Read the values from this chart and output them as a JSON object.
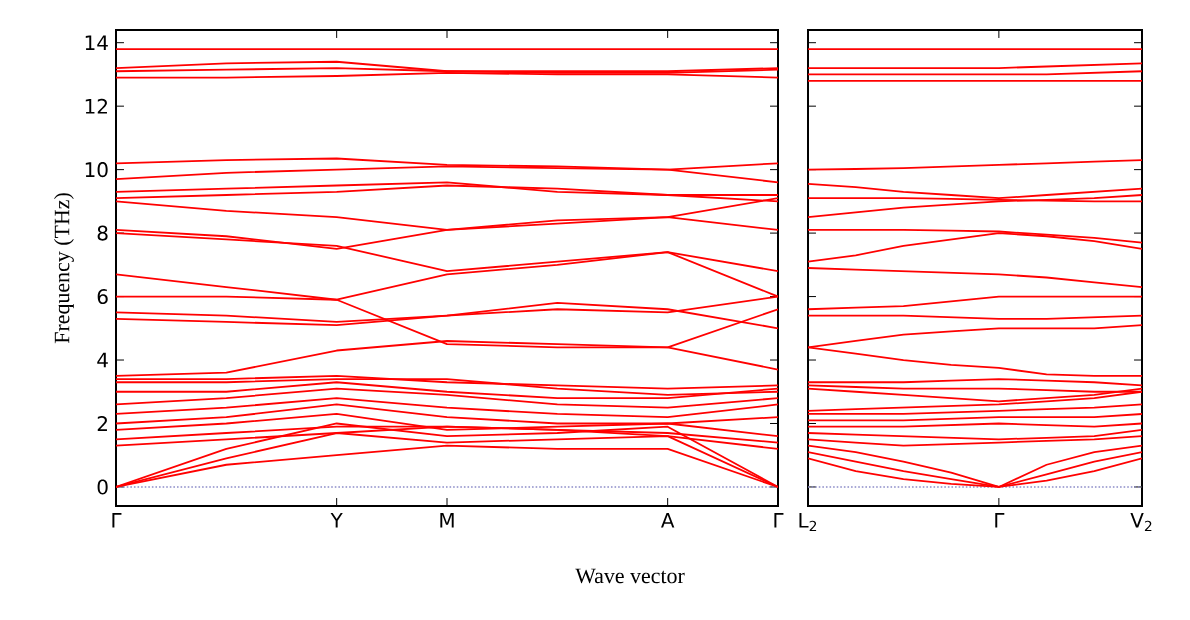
{
  "chart_data": [
    {
      "type": "line",
      "xlabel": "Wave vector",
      "ylabel": "Frequency (THz)",
      "categories": [
        "Γ",
        null,
        "Y",
        "M",
        null,
        "A",
        "Γ"
      ],
      "ylim": [
        -0.6,
        14.4
      ],
      "yticks": [
        0,
        2,
        4,
        6,
        8,
        10,
        12,
        14
      ],
      "ref_lines": [
        {
          "axis": "y",
          "value": 0,
          "color": "#8c8cc8",
          "line_style": "dotted"
        }
      ],
      "line_style": "solid",
      "series": [
        {
          "color": "#ff0000",
          "values": [
            13.8,
            13.8,
            13.8,
            13.8,
            13.8,
            13.8,
            13.8
          ]
        },
        {
          "color": "#ff0000",
          "values": [
            13.2,
            13.35,
            13.4,
            13.1,
            13.1,
            13.1,
            13.2
          ]
        },
        {
          "color": "#ff0000",
          "values": [
            13.1,
            13.15,
            13.2,
            13.1,
            13.05,
            13.05,
            13.15
          ]
        },
        {
          "color": "#ff0000",
          "values": [
            12.9,
            12.9,
            12.95,
            13.05,
            13.0,
            13.0,
            12.9
          ]
        },
        {
          "color": "#ff0000",
          "values": [
            10.2,
            10.3,
            10.35,
            10.15,
            10.1,
            10.0,
            10.2
          ]
        },
        {
          "color": "#ff0000",
          "values": [
            9.7,
            9.9,
            10.0,
            10.1,
            10.05,
            10.0,
            9.6
          ]
        },
        {
          "color": "#ff0000",
          "values": [
            9.3,
            9.4,
            9.5,
            9.6,
            9.3,
            9.2,
            9.2
          ]
        },
        {
          "color": "#ff0000",
          "values": [
            9.1,
            9.2,
            9.3,
            9.5,
            9.4,
            9.2,
            9.0
          ]
        },
        {
          "color": "#ff0000",
          "values": [
            9.0,
            8.7,
            8.5,
            8.1,
            8.3,
            8.5,
            9.1
          ]
        },
        {
          "color": "#ff0000",
          "values": [
            8.1,
            7.9,
            7.5,
            8.1,
            8.4,
            8.5,
            8.1
          ]
        },
        {
          "color": "#ff0000",
          "values": [
            8.0,
            7.8,
            7.6,
            6.8,
            7.1,
            7.4,
            6.8
          ]
        },
        {
          "color": "#ff0000",
          "values": [
            6.7,
            6.3,
            5.9,
            6.7,
            7.0,
            7.4,
            6.0
          ]
        },
        {
          "color": "#ff0000",
          "values": [
            6.0,
            6.0,
            5.9,
            4.5,
            4.4,
            4.4,
            5.6
          ]
        },
        {
          "color": "#ff0000",
          "values": [
            5.5,
            5.4,
            5.2,
            5.4,
            5.6,
            5.5,
            6.0
          ]
        },
        {
          "color": "#ff0000",
          "values": [
            5.3,
            5.2,
            5.1,
            5.4,
            5.8,
            5.6,
            5.0
          ]
        },
        {
          "color": "#ff0000",
          "values": [
            3.5,
            3.6,
            4.3,
            4.6,
            4.5,
            4.4,
            3.7
          ]
        },
        {
          "color": "#ff0000",
          "values": [
            3.4,
            3.4,
            3.5,
            3.3,
            3.2,
            3.1,
            3.2
          ]
        },
        {
          "color": "#ff0000",
          "values": [
            3.3,
            3.3,
            3.4,
            3.4,
            3.1,
            2.9,
            3.0
          ]
        },
        {
          "color": "#ff0000",
          "values": [
            3.0,
            3.0,
            3.3,
            3.0,
            2.8,
            2.8,
            3.1
          ]
        },
        {
          "color": "#ff0000",
          "values": [
            2.6,
            2.8,
            3.1,
            2.9,
            2.6,
            2.5,
            2.8
          ]
        },
        {
          "color": "#ff0000",
          "values": [
            2.3,
            2.5,
            2.8,
            2.5,
            2.3,
            2.2,
            2.6
          ]
        },
        {
          "color": "#ff0000",
          "values": [
            2.0,
            2.2,
            2.6,
            2.2,
            2.0,
            2.0,
            2.2
          ]
        },
        {
          "color": "#ff0000",
          "values": [
            1.8,
            2.0,
            2.3,
            1.8,
            1.9,
            2.0,
            1.6
          ]
        },
        {
          "color": "#ff0000",
          "values": [
            1.5,
            1.7,
            1.9,
            1.9,
            1.8,
            1.7,
            1.4
          ]
        },
        {
          "color": "#ff0000",
          "values": [
            1.3,
            1.5,
            1.7,
            1.9,
            1.8,
            1.6,
            1.2
          ]
        },
        {
          "color": "#ff0000",
          "values": [
            0,
            1.2,
            2.0,
            1.6,
            1.7,
            1.9,
            0
          ]
        },
        {
          "color": "#ff0000",
          "values": [
            0,
            0.9,
            1.7,
            1.4,
            1.5,
            1.6,
            0
          ]
        },
        {
          "color": "#ff0000",
          "values": [
            0,
            0.7,
            1.0,
            1.3,
            1.2,
            1.2,
            0
          ]
        }
      ]
    },
    {
      "type": "line",
      "tick_labels": "x",
      "categories": [
        "L$_{2}$",
        null,
        null,
        null,
        "Γ",
        null,
        null,
        "V$_{2}$"
      ],
      "ylim": [
        -0.6,
        14.4
      ],
      "yticks": [
        0,
        2,
        4,
        6,
        8,
        10,
        12,
        14
      ],
      "ref_lines": [
        {
          "axis": "y",
          "value": 0,
          "color": "#8c8cc8",
          "line_style": "dotted"
        }
      ],
      "line_style": "solid",
      "series": [
        {
          "color": "#ff0000",
          "values": [
            13.8,
            13.8,
            13.8,
            13.8,
            13.8,
            13.8,
            13.8,
            13.8
          ]
        },
        {
          "color": "#ff0000",
          "values": [
            13.2,
            13.2,
            13.2,
            13.2,
            13.2,
            13.25,
            13.3,
            13.35
          ]
        },
        {
          "color": "#ff0000",
          "values": [
            13.0,
            13.0,
            13.0,
            13.0,
            13.0,
            13.0,
            13.05,
            13.1
          ]
        },
        {
          "color": "#ff0000",
          "values": [
            12.8,
            12.8,
            12.8,
            12.8,
            12.8,
            12.8,
            12.8,
            12.8
          ]
        },
        {
          "color": "#ff0000",
          "values": [
            10.0,
            10.02,
            10.05,
            10.1,
            10.15,
            10.2,
            10.25,
            10.3
          ]
        },
        {
          "color": "#ff0000",
          "values": [
            9.55,
            9.45,
            9.3,
            9.2,
            9.1,
            9.2,
            9.3,
            9.4
          ]
        },
        {
          "color": "#ff0000",
          "values": [
            9.1,
            9.1,
            9.1,
            9.08,
            9.05,
            9.02,
            9.0,
            9.0
          ]
        },
        {
          "color": "#ff0000",
          "values": [
            8.5,
            8.65,
            8.8,
            8.9,
            9.0,
            9.05,
            9.1,
            9.2
          ]
        },
        {
          "color": "#ff0000",
          "values": [
            8.1,
            8.1,
            8.1,
            8.08,
            8.05,
            7.95,
            7.85,
            7.7
          ]
        },
        {
          "color": "#ff0000",
          "values": [
            7.1,
            7.3,
            7.6,
            7.8,
            8.0,
            7.9,
            7.75,
            7.5
          ]
        },
        {
          "color": "#ff0000",
          "values": [
            6.9,
            6.85,
            6.8,
            6.75,
            6.7,
            6.6,
            6.45,
            6.3
          ]
        },
        {
          "color": "#ff0000",
          "values": [
            5.6,
            5.65,
            5.7,
            5.85,
            6.0,
            6.0,
            6.0,
            6.0
          ]
        },
        {
          "color": "#ff0000",
          "values": [
            5.4,
            5.4,
            5.4,
            5.35,
            5.3,
            5.3,
            5.35,
            5.4
          ]
        },
        {
          "color": "#ff0000",
          "values": [
            4.4,
            4.6,
            4.8,
            4.9,
            5.0,
            5.0,
            5.0,
            5.1
          ]
        },
        {
          "color": "#ff0000",
          "values": [
            4.4,
            4.2,
            4.0,
            3.85,
            3.75,
            3.55,
            3.5,
            3.5
          ]
        },
        {
          "color": "#ff0000",
          "values": [
            3.3,
            3.3,
            3.3,
            3.35,
            3.4,
            3.35,
            3.3,
            3.2
          ]
        },
        {
          "color": "#ff0000",
          "values": [
            3.2,
            3.15,
            3.1,
            3.1,
            3.1,
            3.05,
            3.0,
            3.0
          ]
        },
        {
          "color": "#ff0000",
          "values": [
            3.1,
            3.0,
            2.9,
            2.8,
            2.7,
            2.8,
            2.9,
            3.1
          ]
        },
        {
          "color": "#ff0000",
          "values": [
            2.4,
            2.45,
            2.5,
            2.55,
            2.6,
            2.7,
            2.8,
            3.0
          ]
        },
        {
          "color": "#ff0000",
          "values": [
            2.3,
            2.3,
            2.3,
            2.35,
            2.4,
            2.45,
            2.5,
            2.6
          ]
        },
        {
          "color": "#ff0000",
          "values": [
            2.1,
            2.1,
            2.1,
            2.15,
            2.2,
            2.2,
            2.2,
            2.3
          ]
        },
        {
          "color": "#ff0000",
          "values": [
            1.9,
            1.9,
            1.9,
            1.95,
            2.0,
            1.95,
            1.9,
            2.0
          ]
        },
        {
          "color": "#ff0000",
          "values": [
            1.7,
            1.65,
            1.6,
            1.55,
            1.5,
            1.55,
            1.6,
            1.8
          ]
        },
        {
          "color": "#ff0000",
          "values": [
            1.5,
            1.4,
            1.3,
            1.35,
            1.4,
            1.45,
            1.5,
            1.6
          ]
        },
        {
          "color": "#ff0000",
          "values": [
            1.3,
            1.1,
            0.8,
            0.45,
            0,
            0.7,
            1.1,
            1.3
          ]
        },
        {
          "color": "#ff0000",
          "values": [
            1.1,
            0.8,
            0.5,
            0.25,
            0,
            0.4,
            0.8,
            1.1
          ]
        },
        {
          "color": "#ff0000",
          "values": [
            0.9,
            0.5,
            0.25,
            0.1,
            0,
            0.2,
            0.5,
            0.9
          ]
        }
      ]
    }
  ]
}
